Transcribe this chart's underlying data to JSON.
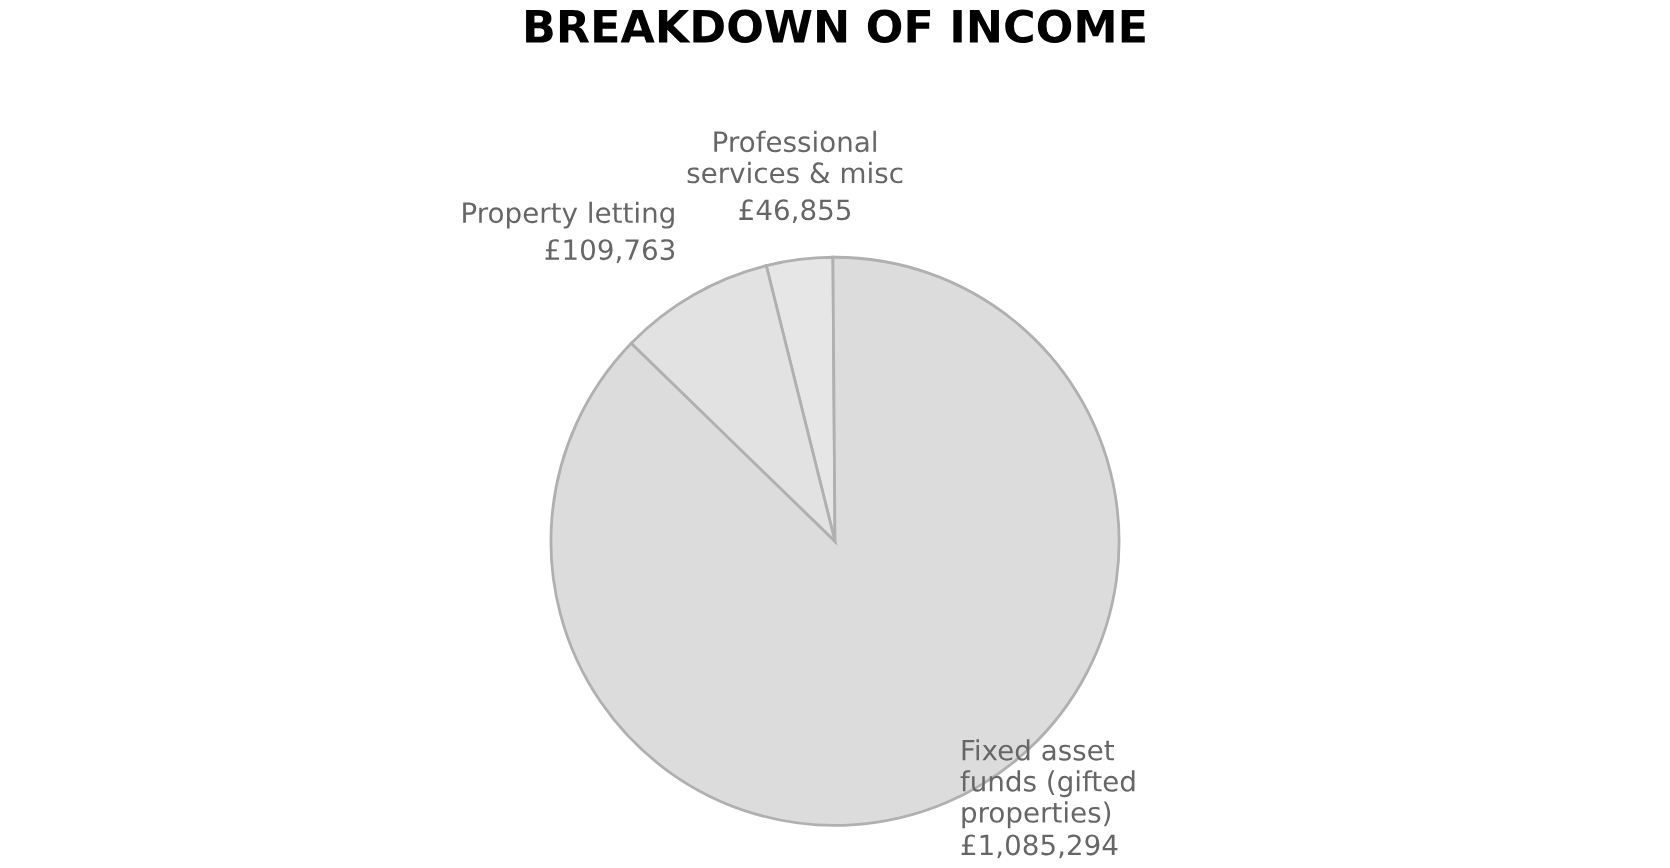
{
  "chart_data": {
    "type": "pie",
    "title": "BREAKDOWN OF INCOME",
    "categories": [
      "Professional services & misc",
      "Fixed asset funds (gifted properties)",
      "Property letting"
    ],
    "values": [
      46855,
      1085294,
      109763
    ],
    "value_labels": [
      "£46,855",
      "£1,085,294",
      "£109,763"
    ],
    "colors": [
      "#e6e6e6",
      "#dcdcdc",
      "#e2e2e2"
    ],
    "legend": false
  }
}
